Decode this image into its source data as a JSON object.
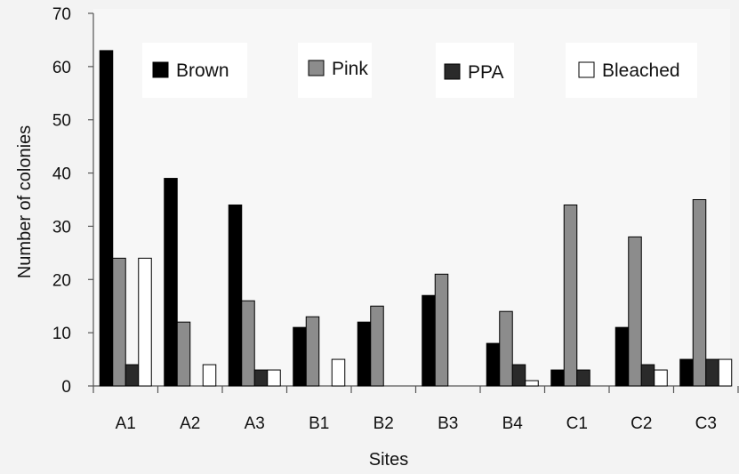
{
  "chart_data": {
    "type": "bar",
    "title": "",
    "xlabel": "Sites",
    "ylabel": "Number of colonies",
    "ylim": [
      0,
      70
    ],
    "yticks": [
      0,
      10,
      20,
      30,
      40,
      50,
      60,
      70
    ],
    "categories": [
      "A1",
      "A2",
      "A3",
      "B1",
      "B2",
      "B3",
      "B4",
      "C1",
      "C2",
      "C3"
    ],
    "series": [
      {
        "name": "Brown",
        "color": "#000000",
        "values": [
          63,
          39,
          34,
          11,
          12,
          17,
          8,
          3,
          11,
          5
        ]
      },
      {
        "name": "Pink",
        "color": "#8c8c8c",
        "values": [
          24,
          12,
          16,
          13,
          15,
          21,
          14,
          34,
          28,
          35
        ]
      },
      {
        "name": "PPA",
        "color": "#2a2a2a",
        "values": [
          4,
          0,
          3,
          0,
          0,
          0,
          4,
          3,
          4,
          5
        ]
      },
      {
        "name": "Bleached",
        "color": "#ffffff",
        "values": [
          24,
          4,
          3,
          5,
          0,
          0,
          1,
          0,
          3,
          5
        ]
      }
    ],
    "grid": false,
    "legend_position": "top"
  }
}
